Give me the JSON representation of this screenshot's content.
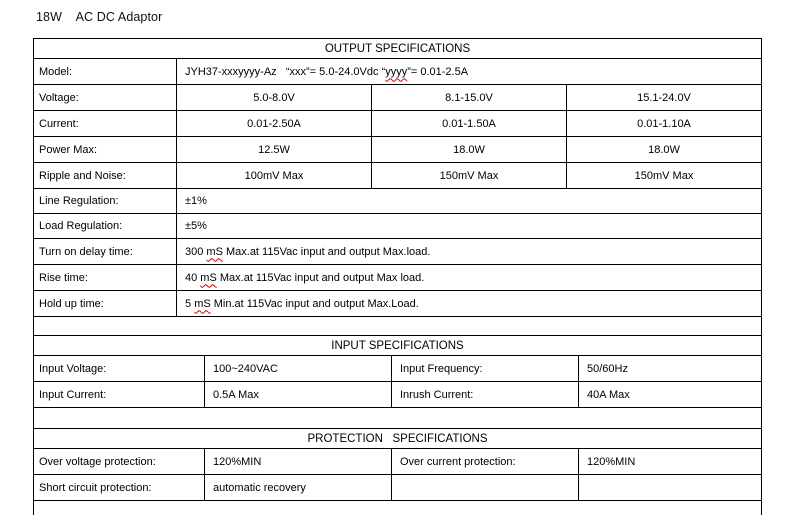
{
  "page": {
    "title": "18W    AC DC Adaptor"
  },
  "colors": {
    "background": "#ffffff",
    "text": "#000000",
    "border": "#000000",
    "squiggle": "#cc0000"
  },
  "output_spec": {
    "header": "OUTPUT SPECIFICATIONS",
    "model": {
      "label": "Model:",
      "pre": "JYH37-xxxyyyy-Az   “xxx”= 5.0-24.0Vdc “",
      "squiggle": "yyyy",
      "post": "”= 0.01-2.5A"
    },
    "rows3": [
      {
        "label": "Voltage:",
        "values": [
          "5.0-8.0V",
          "8.1-15.0V",
          "15.1-24.0V"
        ]
      },
      {
        "label": "Current:",
        "values": [
          "0.01-2.50A",
          "0.01-1.50A",
          "0.01-1.10A"
        ]
      },
      {
        "label": "Power Max:",
        "values": [
          "12.5W",
          "18.0W",
          "18.0W"
        ]
      },
      {
        "label": "Ripple and Noise:",
        "values": [
          "100mV Max",
          "150mV Max",
          "150mV Max"
        ]
      }
    ],
    "rows1": [
      {
        "label": "Line Regulation:",
        "value": "±1%"
      },
      {
        "label": "Load Regulation:",
        "value": "±5%"
      },
      {
        "label": "Turn on delay time:",
        "pre": "300 ",
        "squiggle": "mS",
        "post": " Max.at 115Vac input and output Max.load."
      },
      {
        "label": "Rise time:",
        "pre": "40 ",
        "squiggle": "mS",
        "post": " Max.at 115Vac input and output Max load."
      },
      {
        "label": "Hold up time:",
        "pre": "5 ",
        "squiggle": "mS",
        "post": " Min.at 115Vac input and output Max.Load."
      }
    ]
  },
  "input_spec": {
    "header": "INPUT SPECIFICATIONS",
    "rows": [
      {
        "label1": "Input Voltage:",
        "value1": "100~240VAC",
        "label2": "Input Frequency:",
        "value2": "50/60Hz"
      },
      {
        "label1": "Input Current:",
        "value1": "0.5A Max",
        "label2": "Inrush Current:",
        "value2": "40A Max"
      }
    ]
  },
  "protection_spec": {
    "header": "PROTECTION   SPECIFICATIONS",
    "rows": [
      {
        "label1": "Over voltage protection:",
        "value1": "120%MIN",
        "label2": "Over current protection:",
        "value2": "120%MIN"
      },
      {
        "label1": "Short circuit protection:",
        "value1": "automatic recovery",
        "label2": "",
        "value2": ""
      }
    ]
  }
}
